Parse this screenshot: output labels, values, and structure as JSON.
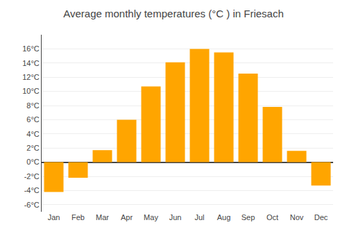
{
  "chart_data": {
    "type": "bar",
    "title": "Average monthly temperatures (°C ) in Friesach",
    "categories": [
      "Jan",
      "Feb",
      "Mar",
      "Apr",
      "May",
      "Jun",
      "Jul",
      "Aug",
      "Sep",
      "Oct",
      "Nov",
      "Dec"
    ],
    "values": [
      -4.2,
      -2.2,
      1.7,
      6.0,
      10.7,
      14.1,
      16.0,
      15.5,
      12.5,
      7.8,
      1.6,
      -3.3
    ],
    "color": "#FFA500",
    "ylim": [
      -7,
      18
    ],
    "yticks": [
      {
        "value": -6,
        "label": "-6°C"
      },
      {
        "value": -4,
        "label": "-4°C"
      },
      {
        "value": -2,
        "label": "-2°C"
      },
      {
        "value": 0,
        "label": "0°C"
      },
      {
        "value": 2,
        "label": "2°C"
      },
      {
        "value": 4,
        "label": "4°C"
      },
      {
        "value": 6,
        "label": "6°C"
      },
      {
        "value": 8,
        "label": "8°C"
      },
      {
        "value": 10,
        "label": "10°C"
      },
      {
        "value": 12,
        "label": "12°C"
      },
      {
        "value": 14,
        "label": "14°C"
      },
      {
        "value": 16,
        "label": "16°C"
      }
    ],
    "grid": true
  }
}
